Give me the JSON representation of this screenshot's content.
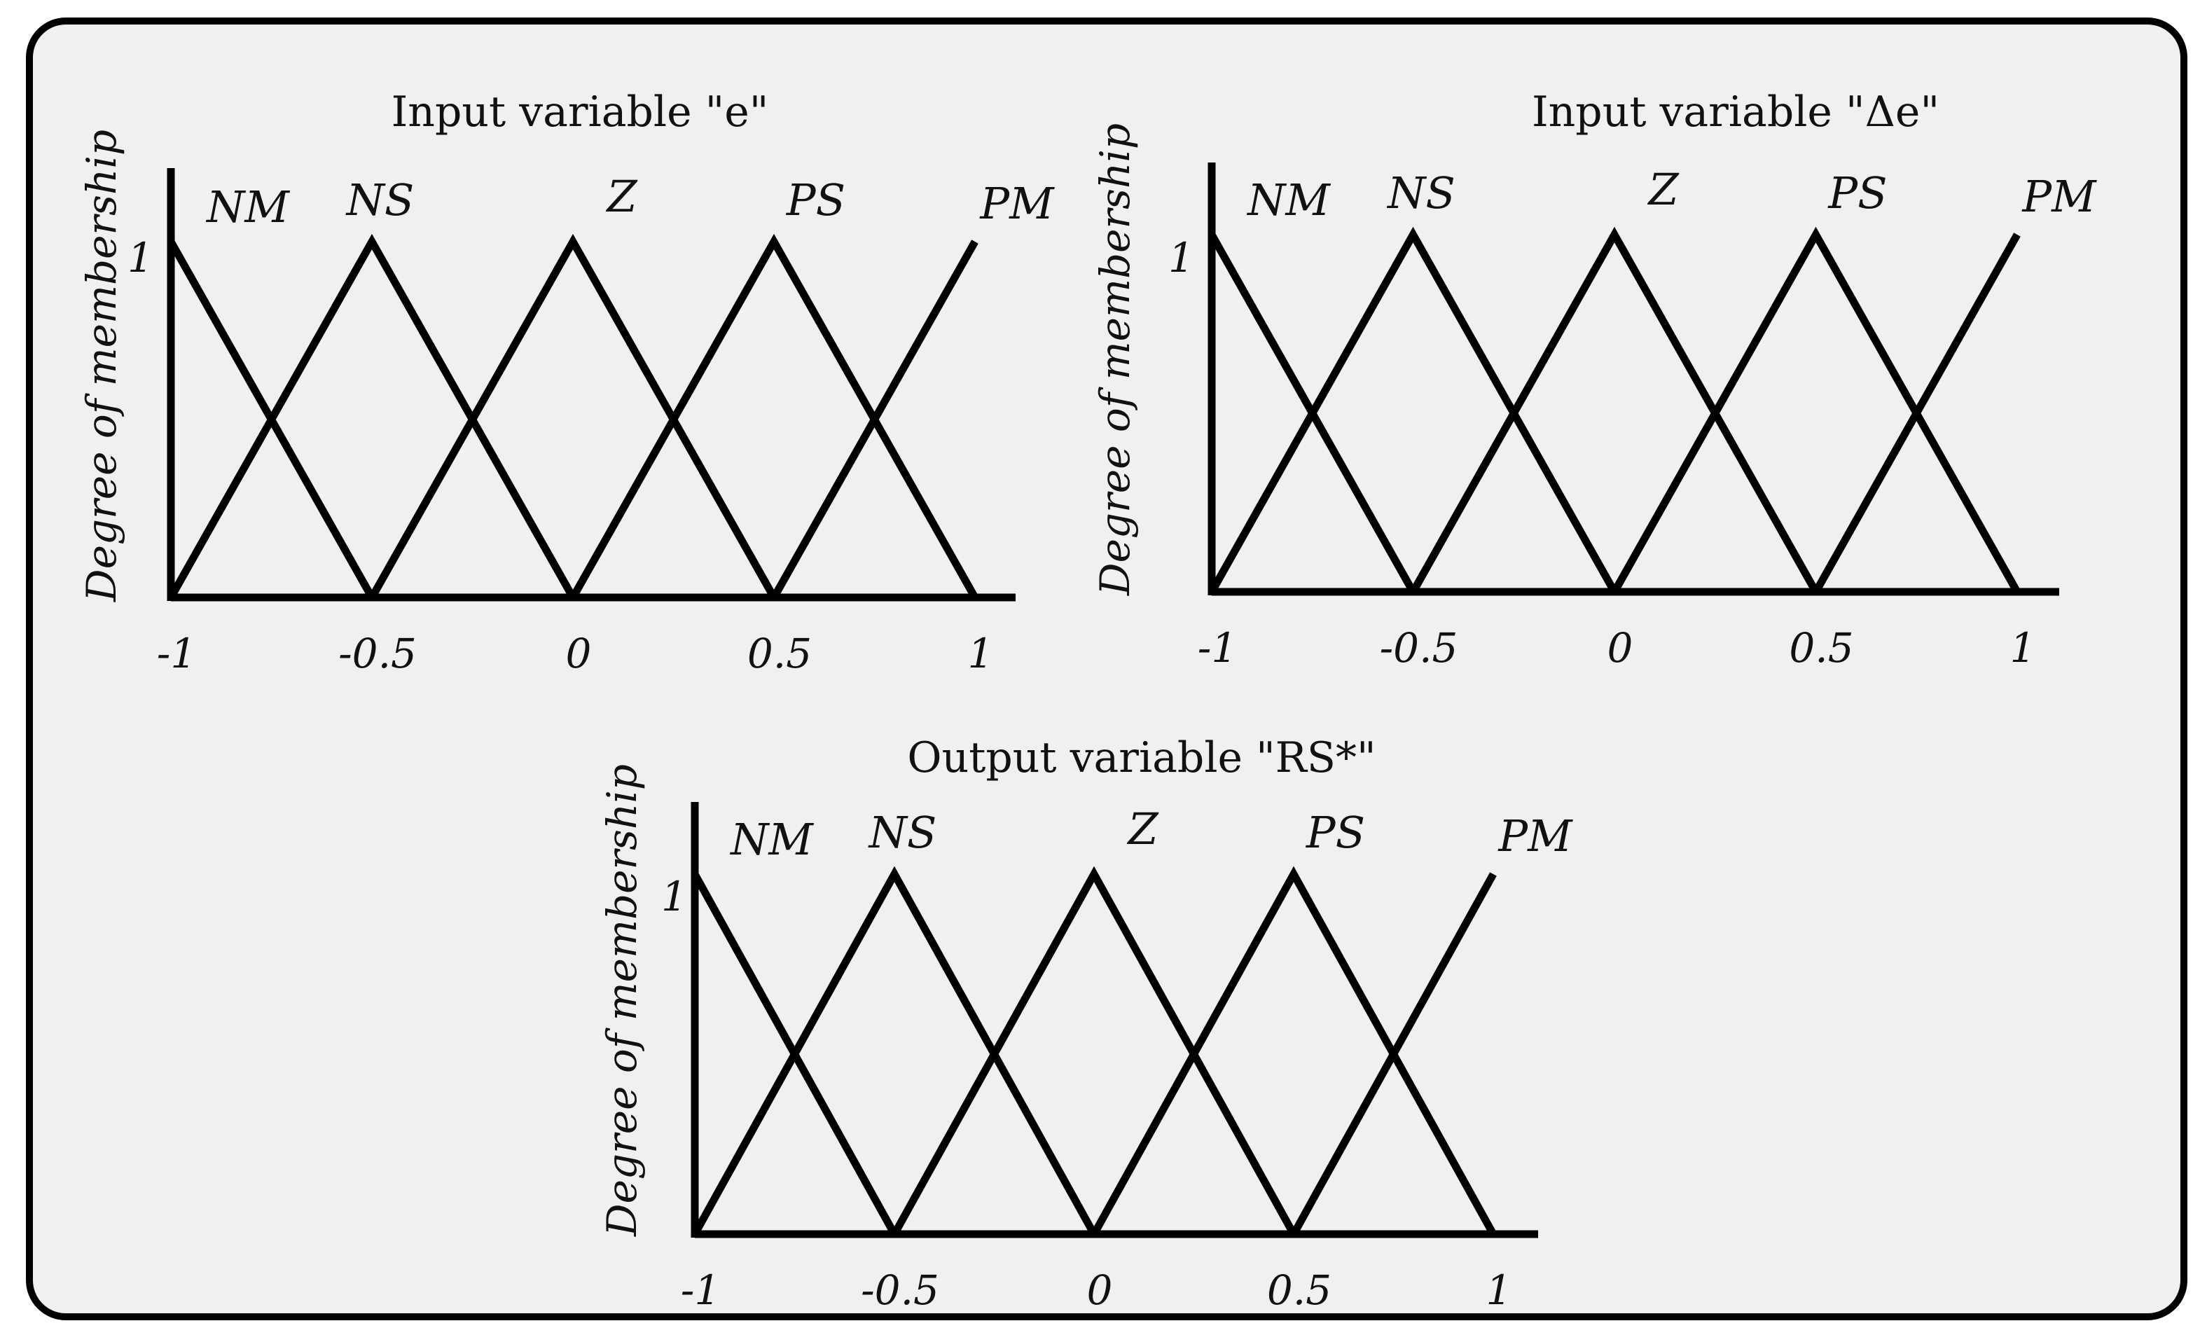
{
  "chart_data": [
    {
      "type": "line",
      "title": "Input variable \"e\"",
      "ylabel": "Degree of membership",
      "y_tick_label": "1",
      "x_ticks": [
        -1,
        -0.5,
        0,
        0.5,
        1
      ],
      "x_tick_labels": [
        "-1",
        "-0.5",
        "0",
        "0.5",
        "1"
      ],
      "xlim": [
        -1,
        1
      ],
      "ylim": [
        0,
        1
      ],
      "grid": false,
      "series": [
        {
          "name": "NM",
          "x": [
            -1,
            -0.5
          ],
          "y": [
            1,
            0
          ]
        },
        {
          "name": "NS",
          "x": [
            -1,
            -0.5,
            0
          ],
          "y": [
            0,
            1,
            0
          ]
        },
        {
          "name": "Z",
          "x": [
            -0.5,
            0,
            0.5
          ],
          "y": [
            0,
            1,
            0
          ]
        },
        {
          "name": "PS",
          "x": [
            0,
            0.5,
            1
          ],
          "y": [
            0,
            1,
            0
          ]
        },
        {
          "name": "PM",
          "x": [
            0.5,
            1
          ],
          "y": [
            0,
            1
          ]
        }
      ]
    },
    {
      "type": "line",
      "title": "Input variable \"Δe\"",
      "ylabel": "Degree of membership",
      "y_tick_label": "1",
      "x_ticks": [
        -1,
        -0.5,
        0,
        0.5,
        1
      ],
      "x_tick_labels": [
        "-1",
        "-0.5",
        "0",
        "0.5",
        "1"
      ],
      "xlim": [
        -1,
        1
      ],
      "ylim": [
        0,
        1
      ],
      "grid": false,
      "series": [
        {
          "name": "NM",
          "x": [
            -1,
            -0.5
          ],
          "y": [
            1,
            0
          ]
        },
        {
          "name": "NS",
          "x": [
            -1,
            -0.5,
            0
          ],
          "y": [
            0,
            1,
            0
          ]
        },
        {
          "name": "Z",
          "x": [
            -0.5,
            0,
            0.5
          ],
          "y": [
            0,
            1,
            0
          ]
        },
        {
          "name": "PS",
          "x": [
            0,
            0.5,
            1
          ],
          "y": [
            0,
            1,
            0
          ]
        },
        {
          "name": "PM",
          "x": [
            0.5,
            1
          ],
          "y": [
            0,
            1
          ]
        }
      ]
    },
    {
      "type": "line",
      "title": "Output variable \"RS*\"",
      "ylabel": "Degree of membership",
      "y_tick_label": "1",
      "x_ticks": [
        -1,
        -0.5,
        0,
        0.5,
        1
      ],
      "x_tick_labels": [
        "-1",
        "-0.5",
        "0",
        "0.5",
        "1"
      ],
      "xlim": [
        -1,
        1
      ],
      "ylim": [
        0,
        1
      ],
      "grid": false,
      "series": [
        {
          "name": "NM",
          "x": [
            -1,
            -0.5
          ],
          "y": [
            1,
            0
          ]
        },
        {
          "name": "NS",
          "x": [
            -1,
            -0.5,
            0
          ],
          "y": [
            0,
            1,
            0
          ]
        },
        {
          "name": "Z",
          "x": [
            -0.5,
            0,
            0.5
          ],
          "y": [
            0,
            1,
            0
          ]
        },
        {
          "name": "PS",
          "x": [
            0,
            0.5,
            1
          ],
          "y": [
            0,
            1,
            0
          ]
        },
        {
          "name": "PM",
          "x": [
            0.5,
            1
          ],
          "y": [
            0,
            1
          ]
        }
      ]
    }
  ]
}
